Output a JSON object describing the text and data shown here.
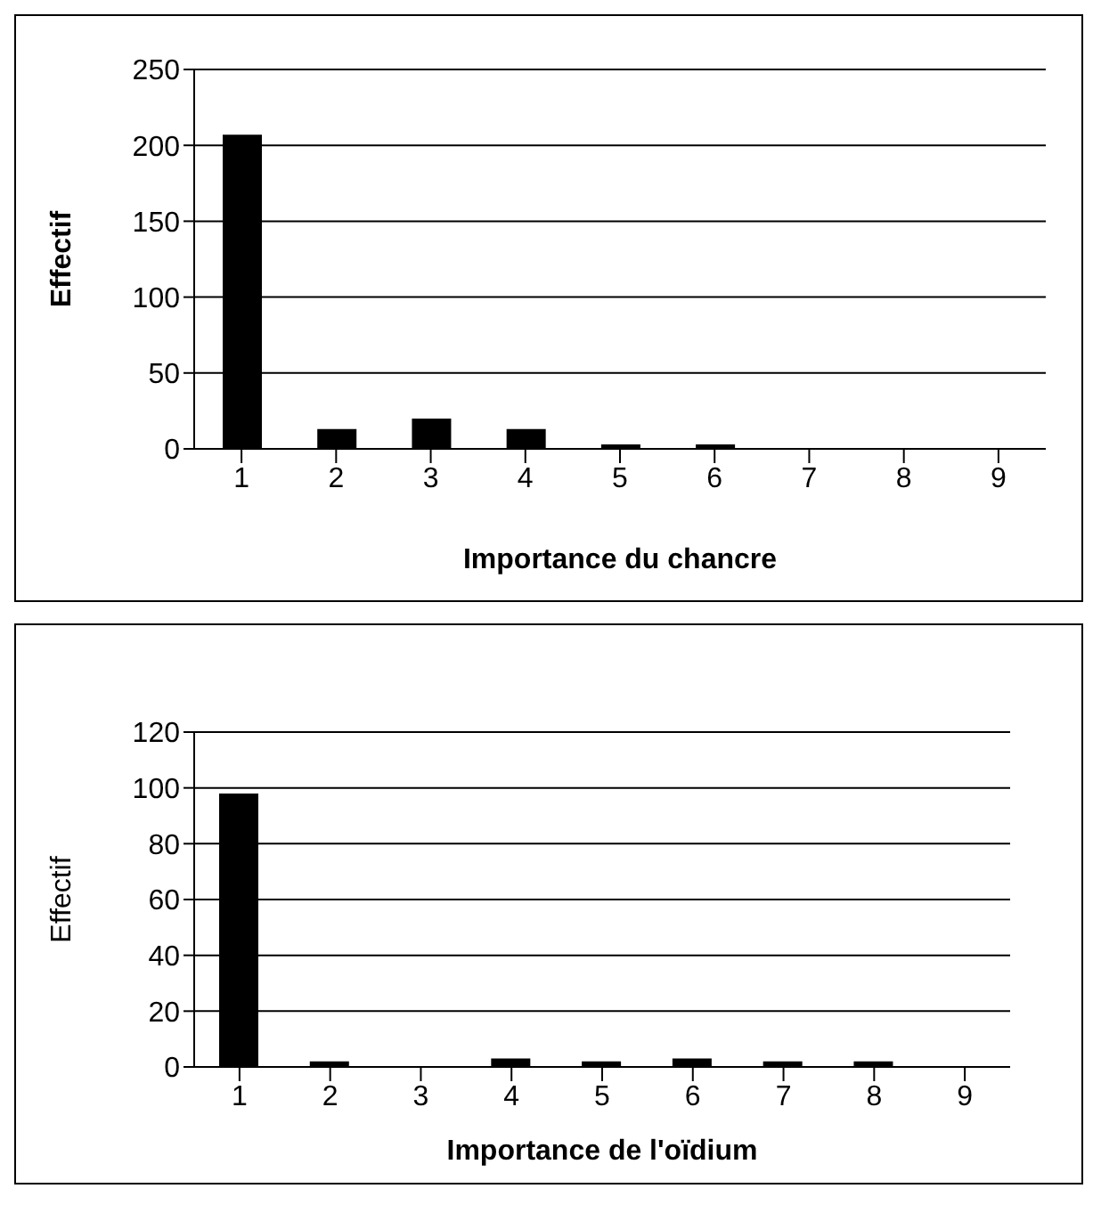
{
  "chart_data": [
    {
      "type": "bar",
      "xlabel": "Importance du chancre",
      "ylabel": "Effectif",
      "categories": [
        "1",
        "2",
        "3",
        "4",
        "5",
        "6",
        "7",
        "8",
        "9"
      ],
      "values": [
        207,
        13,
        20,
        13,
        3,
        3,
        0,
        0,
        0
      ],
      "color": "#000000",
      "ylim": [
        0,
        250
      ],
      "yticks": [
        0,
        50,
        100,
        150,
        200,
        250
      ],
      "grid": "y"
    },
    {
      "type": "bar",
      "xlabel": "Importance de l'oïdium",
      "ylabel": "Effectif",
      "categories": [
        "1",
        "2",
        "3",
        "4",
        "5",
        "6",
        "7",
        "8",
        "9"
      ],
      "values": [
        98,
        2,
        0,
        3,
        2,
        3,
        2,
        2,
        0
      ],
      "color": "#000000",
      "ylim": [
        0,
        120
      ],
      "yticks": [
        0,
        20,
        40,
        60,
        80,
        100,
        120
      ],
      "grid": "y"
    }
  ]
}
